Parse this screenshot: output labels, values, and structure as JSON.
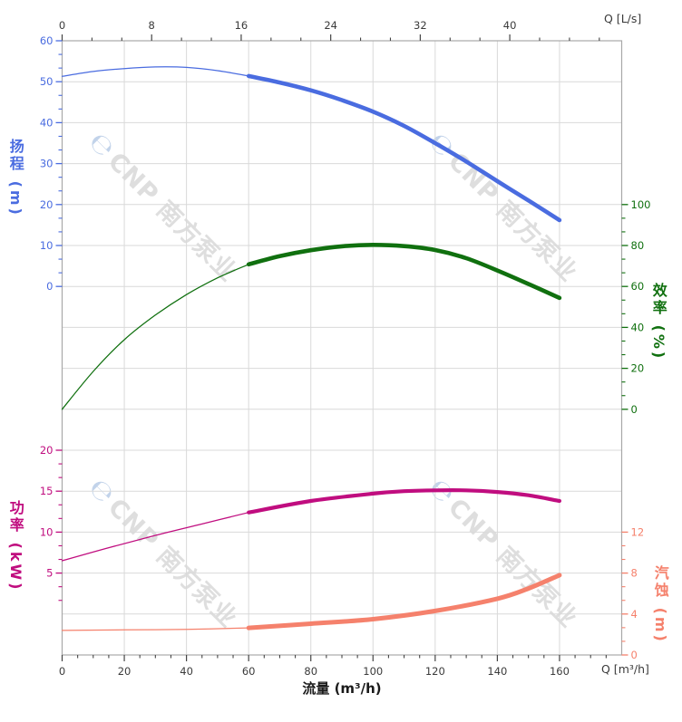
{
  "watermark": {
    "logo_glyph": "℮",
    "text": "CNP 南方泵业"
  },
  "colors": {
    "head": "#4a6ce0",
    "efficiency": "#10700f",
    "power": "#c00d7f",
    "npsh": "#f5816c",
    "grid": "#d9d9d9",
    "frame": "#a9a9a9",
    "axis_text": "#3b3b3b"
  },
  "chart_data": {
    "type": "line",
    "x_bottom": {
      "title": "流量 (m³/h)",
      "unit": "Q [m³/h]",
      "ticks": [
        0,
        20,
        40,
        60,
        80,
        100,
        120,
        140,
        160
      ],
      "minor_step": 5,
      "max_q": 180
    },
    "x_top": {
      "unit": "Q [L/s]",
      "ticks": [
        0,
        8,
        16,
        24,
        32,
        40
      ],
      "max_q_ls": 50
    },
    "y_axes": [
      {
        "id": "head",
        "title": "扬程 (m)",
        "color": "#4a6ce0",
        "side": "left",
        "ticks": [
          60,
          50,
          40,
          30,
          20,
          10,
          0
        ],
        "top_row": 0,
        "step": 10,
        "extra_minor": 0
      },
      {
        "id": "efficiency",
        "title": "效率 (%)",
        "color": "#10700f",
        "side": "right",
        "ticks": [
          100,
          80,
          60,
          40,
          20,
          0
        ],
        "top_row": 4,
        "step": 20,
        "extra_minor": 0
      },
      {
        "id": "power",
        "title": "功率 (kW)",
        "color": "#c00d7f",
        "side": "left",
        "ticks": [
          20,
          15,
          10,
          5
        ],
        "top_row": 10,
        "step": 5,
        "extra_minor": 1
      },
      {
        "id": "npsh",
        "title": "汽蚀 (m)",
        "color": "#f5816c",
        "side": "right",
        "ticks": [
          12,
          8,
          4,
          0
        ],
        "top_row": 12,
        "step": 4,
        "extra_minor": 0
      }
    ],
    "series": [
      {
        "name": "head",
        "axis": "head",
        "color": "#4a6ce0",
        "thick_width": 4.6,
        "thin": [
          [
            0,
            51.3
          ],
          [
            10,
            52.5
          ],
          [
            20,
            53.2
          ],
          [
            30,
            53.6
          ],
          [
            40,
            53.5
          ],
          [
            50,
            52.7
          ],
          [
            60,
            51.4
          ]
        ],
        "thick": [
          [
            60,
            51.4
          ],
          [
            70,
            49.8
          ],
          [
            80,
            47.9
          ],
          [
            90,
            45.5
          ],
          [
            100,
            42.7
          ],
          [
            110,
            39.2
          ],
          [
            120,
            35.0
          ],
          [
            130,
            30.5
          ],
          [
            140,
            25.7
          ],
          [
            150,
            21.0
          ],
          [
            160,
            16.2
          ]
        ]
      },
      {
        "name": "efficiency",
        "axis": "efficiency",
        "color": "#10700f",
        "thick_width": 4.6,
        "thin": [
          [
            0,
            0
          ],
          [
            10,
            18.5
          ],
          [
            20,
            34
          ],
          [
            30,
            46
          ],
          [
            40,
            56
          ],
          [
            50,
            64.2
          ],
          [
            60,
            70.8
          ]
        ],
        "thick": [
          [
            60,
            70.8
          ],
          [
            70,
            74.8
          ],
          [
            80,
            77.7
          ],
          [
            90,
            79.6
          ],
          [
            100,
            80.3
          ],
          [
            110,
            79.7
          ],
          [
            120,
            77.8
          ],
          [
            130,
            73.8
          ],
          [
            140,
            67.8
          ],
          [
            150,
            61.2
          ],
          [
            160,
            54.4
          ]
        ]
      },
      {
        "name": "power",
        "axis": "power",
        "color": "#c00d7f",
        "thick_width": 4.2,
        "thin": [
          [
            0,
            6.5
          ],
          [
            15,
            8.1
          ],
          [
            30,
            9.6
          ],
          [
            45,
            11.0
          ],
          [
            60,
            12.4
          ]
        ],
        "thick": [
          [
            60,
            12.4
          ],
          [
            80,
            13.8
          ],
          [
            100,
            14.7
          ],
          [
            110,
            15.0
          ],
          [
            120,
            15.1
          ],
          [
            130,
            15.1
          ],
          [
            140,
            14.9
          ],
          [
            150,
            14.5
          ],
          [
            160,
            13.8
          ]
        ]
      },
      {
        "name": "npsh",
        "axis": "npsh",
        "color": "#f5816c",
        "thick_width": 5,
        "thin": [
          [
            0,
            2.4
          ],
          [
            20,
            2.45
          ],
          [
            40,
            2.5
          ],
          [
            60,
            2.65
          ]
        ],
        "thick": [
          [
            60,
            2.65
          ],
          [
            80,
            3.05
          ],
          [
            100,
            3.5
          ],
          [
            120,
            4.3
          ],
          [
            140,
            5.5
          ],
          [
            150,
            6.5
          ],
          [
            160,
            7.8
          ]
        ]
      }
    ]
  }
}
